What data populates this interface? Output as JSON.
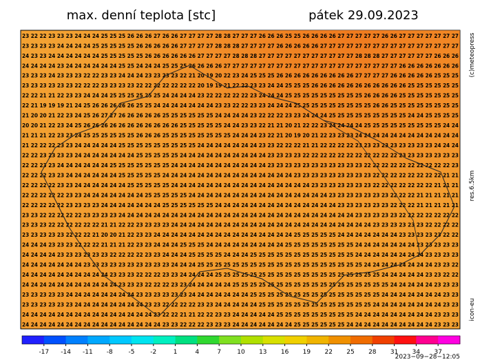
{
  "header": {
    "title": "max. denní teplota [stc]",
    "date": "pátek 29.09.2023"
  },
  "side_labels": {
    "copyright": "(c)meteopress",
    "resolution": "res.6.5km",
    "model": "icon-eu"
  },
  "timestamp": "2023−09−28−12:05",
  "grid_rows": [
    "23 22 22 23 23 23 24 24 24 25 25 25 26 26 26 27 26 26 27 27 27 27 28 28 27 27 27 26 26 26 25 25 26 26 26 26 27 27 27 27 27 26 26 27 27 27 27 27 27 27",
    "23 23 23 23 24 24 24 24 25 25 25 25 25 26 26 26 26 26 27 27 27 27 28 28 28 27 27 27 27 26 26 26 26 26 27 27 27 27 27 27 27 27 27 27 27 27 27 27 27 27",
    "24 23 23 24 24 24 24 24 24 25 25 25 25 25 26 26 26 26 26 26 27 27 27 27 28 28 28 27 27 27 27 27 27 27 27 27 27 27 28 28 28 27 27 27 27 27 27 26 26 26",
    "24 24 24 24 23 24 24 24 24 24 24 25 25 24 24 24 25 25 25 26 26 26 26 27 27 27 27 27 27 27 27 27 27 27 27 27 27 27 27 27 27 27 27 26 26 26 26 26 26 26",
    "23 23 23 24 23 23 23 22 22 23 23 24 24 24 23 23 23 23 22 21 20 19 20 22 23 24 25 25 25 26 26 26 26 26 26 26 26 26 27 27 27 27 26 26 26 26 26 25 25 25",
    "23 23 23 23 23 23 22 22 22 23 23 23 23 22 22 22 22 22 22 22 20 19 19 21 22 22 23 23 24 24 25 25 25 26 26 26 26 26 26 26 26 26 26 26 25 25 25 25 25 25",
    "22 22 21 21 22 23 23 24 24 24 25 25 25 25 25 25 24 24 24 24 23 22 22 22 22 22 23 24 24 24 25 25 25 25 25 25 25 25 25 26 26 26 26 25 25 25 25 25 25 25",
    "22 21 19 19 19 21 24 25 26 26 26 26 26 25 25 24 24 24 24 24 24 24 23 23 22 22 23 23 24 24 24 25 25 25 25 25 25 25 25 25 26 26 25 25 25 25 25 25 25 25",
    "21 20 20 21 22 23 24 25 26 27 27 26 26 26 26 26 25 25 25 25 25 25 24 24 24 24 23 22 22 22 23 23 24 24 24 25 25 25 25 25 25 25 25 25 24 24 25 25 25 25",
    "20 20 21 22 23 24 25 26 26 26 26 26 26 26 26 26 26 26 25 25 25 25 25 24 24 23 23 22 21 21 20 21 22 22 23 24 24 24 24 25 25 25 25 25 25 25 25 25 24 24",
    "21 21 21 22 23 23 24 25 25 25 25 25 25 26 26 26 25 25 25 25 25 25 25 25 24 24 24 23 22 21 20 19 20 21 22 23 23 23 24 24 24 24 24 24 24 24 24 24 24 24",
    "21 22 22 22 23 23 24 24 24 24 24 25 25 25 25 25 25 25 25 25 24 24 24 24 24 24 24 23 23 22 22 22 21 21 22 22 22 22 23 23 23 23 23 23 23 23 23 24 24 24",
    "22 22 23 23 23 23 24 24 24 24 24 24 24 25 25 25 25 25 24 24 24 24 24 24 24 24 24 24 23 23 23 23 22 22 22 22 22 22 22 22 22 22 22 23 23 23 23 23 23 23",
    "22 22 23 23 24 24 24 24 24 24 25 25 25 25 25 25 25 24 24 24 24 24 24 24 24 24 24 24 23 23 23 23 23 23 23 23 23 23 23 22 22 22 22 22 22 22 22 22 22 23",
    "22 22 22 23 23 24 24 24 24 24 24 25 25 25 25 25 24 24 24 24 24 24 24 24 24 24 24 24 24 24 24 23 23 23 23 23 23 23 23 23 22 22 22 22 22 22 22 22 21 21",
    "22 22 22 22 23 23 24 24 24 24 24 24 25 25 25 25 25 24 24 24 24 24 24 24 24 24 24 24 24 24 24 24 24 23 23 23 23 23 23 23 22 22 22 22 22 22 22 21 21 21",
    "22 22 22 22 22 23 23 24 24 24 24 24 24 24 25 25 25 25 25 24 24 24 24 24 24 24 24 24 24 24 24 24 24 24 24 23 23 23 23 23 23 23 22 22 22 21 21 21 21 21",
    "22 22 22 22 22 23 23 23 23 24 24 24 24 24 24 24 25 25 25 25 25 25 24 24 24 24 24 24 24 24 24 24 24 24 24 24 23 23 23 23 23 23 22 22 22 21 21 21 21 21",
    "23 23 22 22 22 22 22 23 23 23 23 24 24 24 24 24 24 24 24 24 24 24 24 24 24 24 24 24 24 24 24 24 24 24 24 24 24 24 23 23 23 23 23 22 22 22 22 22 22 22",
    "23 23 23 22 22 22 22 22 22 21 21 22 22 23 23 23 23 24 24 24 24 24 24 24 24 24 24 24 24 24 24 24 24 24 24 24 24 24 24 24 23 23 23 23 23 23 22 22 22 22",
    "23 23 23 23 23 22 22 22 21 20 20 21 22 23 23 24 24 24 24 24 24 24 24 24 24 24 24 24 24 24 24 25 25 25 25 25 24 24 24 24 24 24 24 23 23 23 23 23 22 22",
    "24 24 24 23 23 23 22 22 22 21 21 21 22 23 23 24 24 24 25 25 25 24 24 24 24 24 24 24 24 24 25 25 25 25 25 25 25 25 24 24 24 24 24 24 24 23 23 23 23 23",
    "24 24 24 24 23 23 23 23 23 23 22 22 22 22 23 23 24 24 24 25 25 25 25 24 24 24 25 25 25 25 25 25 25 25 25 25 25 25 24 24 24 24 24 24 24 24 23 23 23 23",
    "24 24 24 24 24 24 24 23 23 23 23 23 23 23 23 23 23 24 24 24 25 25 25 25 25 25 25 25 25 25 25 25 25 25 25 25 25 25 25 24 24 24 24 24 24 24 24 23 23 22",
    "24 24 24 24 24 24 24 24 24 24 23 23 23 22 22 22 23 23 24 24 24 24 25 25 25 25 25 25 25 25 25 25 25 25 25 25 25 25 25 25 25 24 24 24 24 24 23 23 22 22",
    "24 24 24 24 24 24 24 24 24 24 24 23 23 23 22 22 22 23 23 24 24 24 24 24 25 25 25 25 25 25 25 25 25 25 25 25 25 25 25 25 25 25 24 24 24 24 24 23 23 23",
    "23 23 23 23 23 24 24 24 24 24 24 24 24 23 23 23 23 23 23 24 24 24 24 24 24 24 25 25 25 25 25 25 25 25 25 25 25 25 25 25 25 24 24 24 24 24 24 24 23 23",
    "23 23 23 23 23 23 24 24 24 24 24 24 24 24 23 23 22 22 22 22 23 23 24 24 24 24 24 25 25 25 25 25 25 25 25 25 25 25 25 25 24 24 24 24 24 24 24 24 23 23",
    "24 24 24 24 24 24 24 24 24 24 24 24 24 24 24 23 22 22 21 21 22 22 23 23 24 24 24 24 24 25 25 25 25 25 25 25 25 25 24 24 24 24 24 24 24 24 24 23 23 23",
    "24 24 24 24 24 24 24 24 24 24 24 24 24 24 24 24 23 23 22 22 22 23 23 23 24 24 24 24 24 24 24 25 25 25 25 25 25 24 24 24 24 24 24 24 24 24 24 23 23 23"
  ],
  "colorbar": {
    "lim": [
      -20,
      40
    ],
    "ticks": [
      -17,
      -14,
      -11,
      -8,
      -5,
      -2,
      1,
      4,
      7,
      10,
      13,
      16,
      19,
      22,
      25,
      28,
      31,
      34,
      37
    ],
    "colors": [
      "#2020ff",
      "#0050ff",
      "#0080ff",
      "#00a8ff",
      "#00c8ff",
      "#00e4f0",
      "#00f0c0",
      "#00e080",
      "#30d830",
      "#80e020",
      "#b0e000",
      "#d8e000",
      "#f0d000",
      "#f0b400",
      "#f09000",
      "#f06c00",
      "#f04000",
      "#ff1010",
      "#ff0090",
      "#ff00e0"
    ]
  }
}
